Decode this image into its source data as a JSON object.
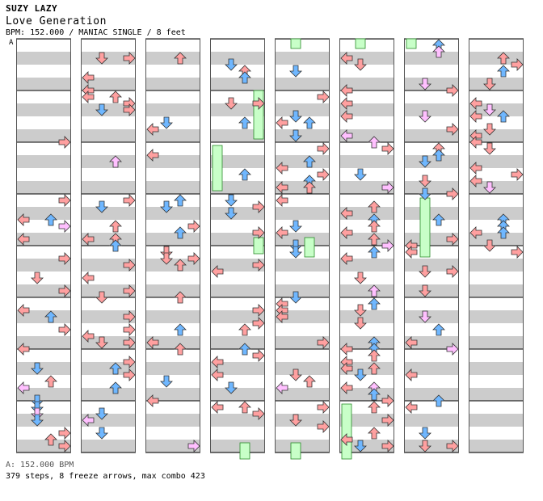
{
  "header": {
    "artist": "SUZY LAZY",
    "title": "Love Generation",
    "info": "BPM: 152.000 / MANIAC SINGLE / 8 feet",
    "section_marker": "A"
  },
  "footer": {
    "bpm_line": "A: 152.000 BPM",
    "stats_line": "379 steps, 8 freeze arrows, max combo 423"
  },
  "colors": {
    "blue_arrow": "#6fb7ff",
    "red_arrow": "#ffa0a0",
    "pink_arrow": "#ffc0ff",
    "freeze": "#c8ffc8",
    "band": "#cccccc"
  },
  "chart_data": {
    "type": "step-chart",
    "bpm": 152.0,
    "difficulty": "MANIAC SINGLE",
    "feet": 8,
    "steps": 379,
    "freeze_arrows": 8,
    "max_combo": 423
  }
}
